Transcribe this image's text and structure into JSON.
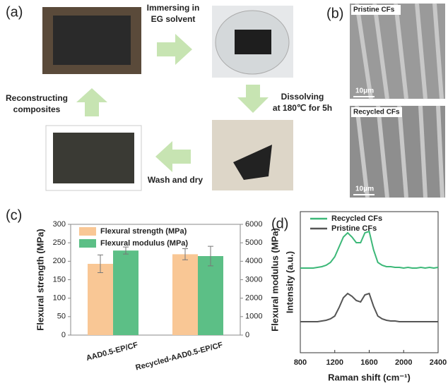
{
  "figure": {
    "panels": [
      "(a)",
      "(b)",
      "(c)",
      "(d)"
    ],
    "steps": [
      {
        "lines": [
          "Immersing in",
          "EG solvent"
        ]
      },
      {
        "lines": [
          "Dissolving",
          "at 180℃ for 5h"
        ]
      },
      {
        "lines": [
          "Wash and dry"
        ]
      },
      {
        "lines": [
          "Reconstructing",
          "composites"
        ]
      }
    ],
    "sem_labels": [
      "Pristine CFs",
      "Recycled CFs"
    ],
    "scale_bars": [
      "10μm",
      "10μm"
    ]
  },
  "chart_data": [
    {
      "type": "bar",
      "categories": [
        "AAD0.5-EP/CF",
        "Recycled-AAD0.5-EP/CF"
      ],
      "series": [
        {
          "name": "Flexural strength (MPa)",
          "color": "#f9c795",
          "values": [
            193,
            219
          ],
          "errors": [
            24,
            15
          ]
        },
        {
          "name": "Flexural modulus (MPa)",
          "color": "#5cbf86",
          "values": [
            4580,
            4280
          ],
          "errors": [
            190,
            530
          ],
          "axis": "y2"
        }
      ],
      "ylabel": "Flexural strength (MPa)",
      "y2label": "Flexural modulus (MPa)",
      "ylim": [
        0,
        300
      ],
      "yticks": [
        0,
        50,
        100,
        150,
        200,
        250,
        300
      ],
      "y2lim": [
        0,
        6000
      ],
      "y2ticks": [
        0,
        1000,
        2000,
        3000,
        4000,
        5000,
        6000
      ],
      "legend": "upper-left"
    },
    {
      "type": "line",
      "x": [
        800,
        850,
        900,
        950,
        1000,
        1050,
        1100,
        1150,
        1200,
        1250,
        1300,
        1350,
        1400,
        1450,
        1500,
        1550,
        1600,
        1650,
        1700,
        1750,
        1800,
        1850,
        1900,
        1950,
        2000,
        2050,
        2100,
        2150,
        2200,
        2250,
        2300,
        2350,
        2400
      ],
      "series": [
        {
          "name": "Recycled CFs",
          "color": "#3cb878",
          "values": [
            6.0,
            6.0,
            6.0,
            6.0,
            6.05,
            6.1,
            6.2,
            6.4,
            6.8,
            7.5,
            8.2,
            8.5,
            8.2,
            7.8,
            7.8,
            8.5,
            8.6,
            7.3,
            6.4,
            6.2,
            6.1,
            6.1,
            6.05,
            6.05,
            6.0,
            6.05,
            6.0,
            6.0,
            6.05,
            6.0,
            6.05,
            6.0,
            6.05
          ]
        },
        {
          "name": "Pristine CFs",
          "color": "#555555",
          "values": [
            2.2,
            2.2,
            2.2,
            2.2,
            2.2,
            2.25,
            2.3,
            2.4,
            2.6,
            3.2,
            3.9,
            4.2,
            4.0,
            3.7,
            3.6,
            4.1,
            4.2,
            3.3,
            2.6,
            2.4,
            2.3,
            2.25,
            2.25,
            2.2,
            2.2,
            2.2,
            2.2,
            2.2,
            2.2,
            2.2,
            2.2,
            2.2,
            2.2
          ]
        }
      ],
      "xlabel": "Raman shift (cm⁻¹)",
      "ylabel": "Intensity (a.u.)",
      "xlim": [
        800,
        2400
      ],
      "xticks": [
        800,
        1200,
        1600,
        2000,
        2400
      ],
      "ylim": [
        0,
        10
      ],
      "legend": "upper-left"
    }
  ]
}
